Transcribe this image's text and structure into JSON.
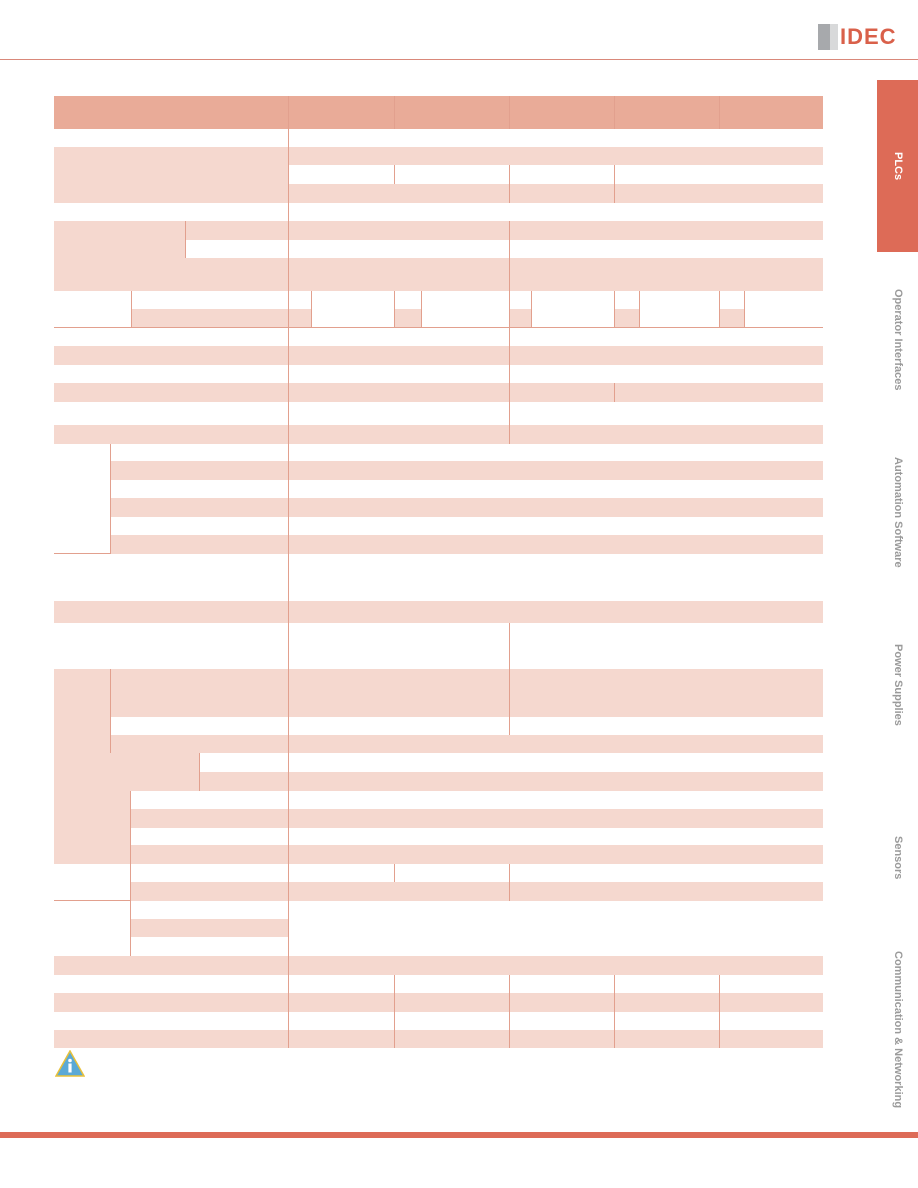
{
  "header": {
    "logo_text": "IDEC"
  },
  "side_tabs": [
    {
      "label": "PLCs",
      "active": true
    },
    {
      "label": "Operator Interfaces",
      "active": false
    },
    {
      "label": "Automation Software",
      "active": false
    },
    {
      "label": "Power Supplies",
      "active": false
    },
    {
      "label": "Sensors",
      "active": false
    },
    {
      "label": "Communication & Networking",
      "active": false
    }
  ],
  "icons": {
    "info": "info-warning-icon"
  },
  "colors": {
    "accent": "#dd6b57",
    "header_fill": "#e9ab98",
    "row_shade": "#f5d8cf"
  }
}
